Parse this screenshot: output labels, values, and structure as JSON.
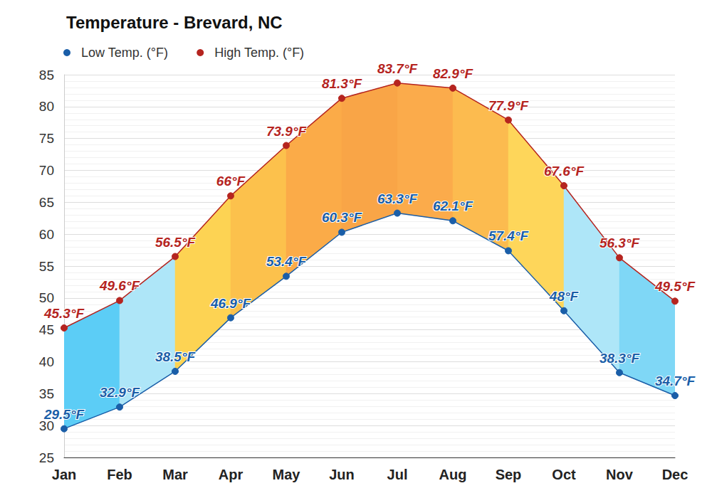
{
  "chart_data": {
    "type": "line",
    "title": "Temperature - Brevard, NC",
    "categories": [
      "Jan",
      "Feb",
      "Mar",
      "Apr",
      "May",
      "Jun",
      "Jul",
      "Aug",
      "Sep",
      "Oct",
      "Nov",
      "Dec"
    ],
    "series": [
      {
        "name": "Low Temp. (°F)",
        "color": "#1a5ea8",
        "values": [
          29.5,
          32.9,
          38.5,
          46.9,
          53.4,
          60.3,
          63.3,
          62.1,
          57.4,
          48,
          38.3,
          34.7
        ],
        "value_labels": [
          "29.5°F",
          "32.9°F",
          "38.5°F",
          "46.9°F",
          "53.4°F",
          "60.3°F",
          "63.3°F",
          "62.1°F",
          "57.4°F",
          "48°F",
          "38.3°F",
          "34.7°F"
        ]
      },
      {
        "name": "High Temp. (°F)",
        "color": "#b5241f",
        "values": [
          45.3,
          49.6,
          56.5,
          66,
          73.9,
          81.3,
          83.7,
          82.9,
          77.9,
          67.6,
          56.3,
          49.5
        ],
        "value_labels": [
          "45.3°F",
          "49.6°F",
          "56.5°F",
          "66°F",
          "73.9°F",
          "81.3°F",
          "83.7°F",
          "82.9°F",
          "77.9°F",
          "67.6°F",
          "56.3°F",
          "49.5°F"
        ]
      }
    ],
    "ylim": [
      25,
      85
    ],
    "yticks": [
      25,
      30,
      35,
      40,
      45,
      50,
      55,
      60,
      65,
      70,
      75,
      80,
      85
    ],
    "grid": true,
    "legend": "top-left",
    "data_labels": true,
    "marker": "circle"
  }
}
